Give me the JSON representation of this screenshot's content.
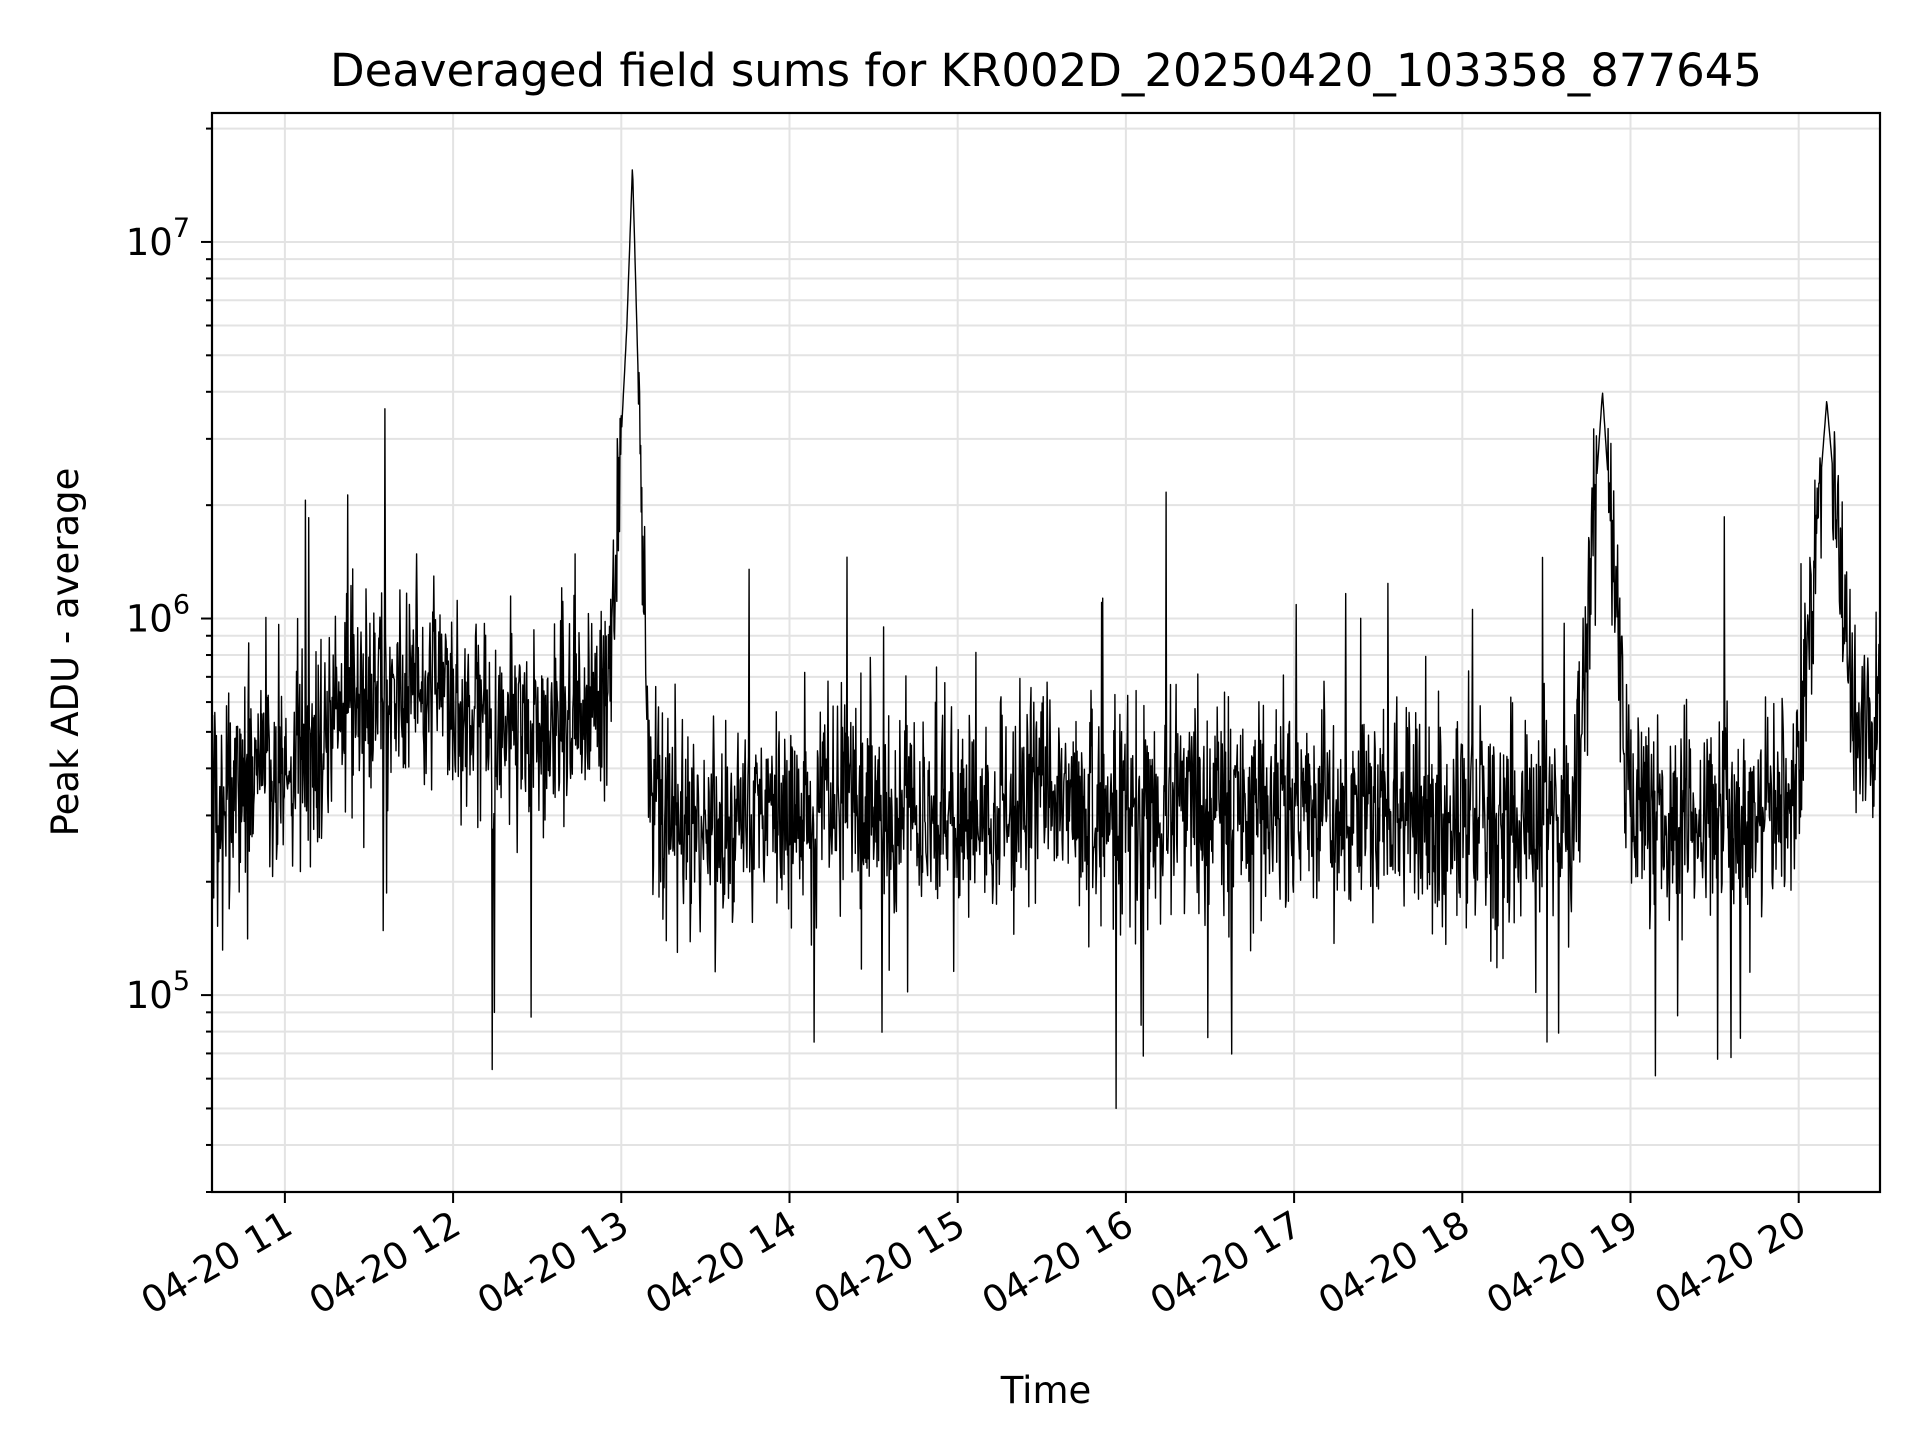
{
  "chart_data": {
    "type": "line",
    "title": "Deaveraged field sums for KR002D_20250420_103358_877645",
    "xlabel": "Time",
    "ylabel": "Peak ADU - average",
    "y_scale": "log",
    "ylim": [
      30000,
      22000000
    ],
    "xlim": [
      "2025-04-20 10:34",
      "2025-04-20 20:29"
    ],
    "grid": true,
    "x_tick_labels": [
      "04-20 11",
      "04-20 12",
      "04-20 13",
      "04-20 14",
      "04-20 15",
      "04-20 16",
      "04-20 17",
      "04-20 18",
      "04-20 19",
      "04-20 20"
    ],
    "y_tick_labels": [
      {
        "value": 100000,
        "mantissa": "10",
        "exponent": "5"
      },
      {
        "value": 1000000,
        "mantissa": "10",
        "exponent": "6"
      },
      {
        "value": 10000000,
        "mantissa": "10",
        "exponent": "7"
      }
    ],
    "series": [
      {
        "color": "#000000",
        "x": [
          "2025-04-20 10:35",
          "2025-04-20 10:45",
          "2025-04-20 10:55",
          "2025-04-20 11:05",
          "2025-04-20 11:15",
          "2025-04-20 11:25",
          "2025-04-20 11:35",
          "2025-04-20 11:45",
          "2025-04-20 11:55",
          "2025-04-20 12:05",
          "2025-04-20 12:15",
          "2025-04-20 12:25",
          "2025-04-20 12:35",
          "2025-04-20 12:45",
          "2025-04-20 12:55",
          "2025-04-20 13:02",
          "2025-04-20 13:04",
          "2025-04-20 13:10",
          "2025-04-20 13:20",
          "2025-04-20 13:30",
          "2025-04-20 13:40",
          "2025-04-20 13:50",
          "2025-04-20 14:00",
          "2025-04-20 14:10",
          "2025-04-20 14:20",
          "2025-04-20 14:30",
          "2025-04-20 14:40",
          "2025-04-20 14:50",
          "2025-04-20 15:00",
          "2025-04-20 15:10",
          "2025-04-20 15:20",
          "2025-04-20 15:30",
          "2025-04-20 15:40",
          "2025-04-20 15:50",
          "2025-04-20 16:00",
          "2025-04-20 16:10",
          "2025-04-20 16:20",
          "2025-04-20 16:30",
          "2025-04-20 16:40",
          "2025-04-20 16:50",
          "2025-04-20 17:00",
          "2025-04-20 17:10",
          "2025-04-20 17:20",
          "2025-04-20 17:30",
          "2025-04-20 17:40",
          "2025-04-20 17:50",
          "2025-04-20 18:00",
          "2025-04-20 18:10",
          "2025-04-20 18:20",
          "2025-04-20 18:30",
          "2025-04-20 18:40",
          "2025-04-20 18:50",
          "2025-04-20 19:00",
          "2025-04-20 19:10",
          "2025-04-20 19:20",
          "2025-04-20 19:30",
          "2025-04-20 19:40",
          "2025-04-20 19:50",
          "2025-04-20 20:00",
          "2025-04-20 20:10",
          "2025-04-20 20:20",
          "2025-04-20 20:28"
        ],
        "y": [
          300000,
          380000,
          400000,
          420000,
          520000,
          650000,
          700000,
          620000,
          620000,
          520000,
          480000,
          520000,
          560000,
          600000,
          560000,
          6000000,
          16000000,
          350000,
          300000,
          280000,
          290000,
          310000,
          300000,
          320000,
          330000,
          300000,
          310000,
          320000,
          300000,
          300000,
          320000,
          330000,
          300000,
          290000,
          310000,
          300000,
          320000,
          310000,
          300000,
          290000,
          300000,
          310000,
          300000,
          290000,
          300000,
          310000,
          290000,
          300000,
          280000,
          300000,
          310000,
          4000000,
          290000,
          300000,
          280000,
          300000,
          280000,
          290000,
          400000,
          3800000,
          520000,
          480000
        ]
      }
    ]
  }
}
